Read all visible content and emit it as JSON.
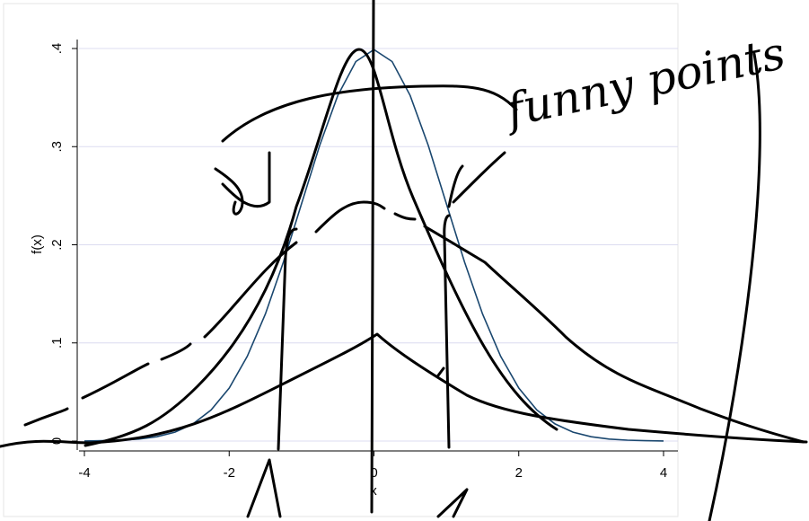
{
  "chart_data": {
    "type": "line",
    "x_label": "x",
    "y_label": "f(x)",
    "annotation": "funny points",
    "x": [
      -4,
      -3.75,
      -3.5,
      -3.25,
      -3,
      -2.75,
      -2.5,
      -2.25,
      -2,
      -1.75,
      -1.5,
      -1.25,
      -1,
      -0.75,
      -0.5,
      -0.25,
      0,
      0.25,
      0.5,
      0.75,
      1,
      1.25,
      1.5,
      1.75,
      2,
      2.25,
      2.5,
      2.75,
      3,
      3.25,
      3.5,
      3.75,
      4
    ],
    "series": [
      {
        "color": "#1a476f",
        "values": [
          0.0001,
          0.0004,
          0.0009,
          0.002,
          0.0044,
          0.0091,
          0.0175,
          0.0317,
          0.054,
          0.0863,
          0.1295,
          0.1826,
          0.242,
          0.3011,
          0.3521,
          0.3867,
          0.3989,
          0.3867,
          0.3521,
          0.3011,
          0.242,
          0.1826,
          0.1295,
          0.0863,
          0.054,
          0.0317,
          0.0175,
          0.0091,
          0.0044,
          0.002,
          0.0009,
          0.0004,
          0.0001
        ]
      }
    ],
    "xlim": [
      -4,
      4
    ],
    "ylim": [
      0,
      0.4
    ],
    "xticks": [
      -4,
      -2,
      0,
      2,
      4
    ],
    "yticks": [
      0,
      {
        "value": 0.1,
        "label": ".1"
      },
      {
        "value": 0.2,
        "label": ".2"
      },
      {
        "value": 0.3,
        "label": ".3"
      },
      {
        "value": 0.4,
        "label": ".4"
      }
    ],
    "grid": true
  }
}
